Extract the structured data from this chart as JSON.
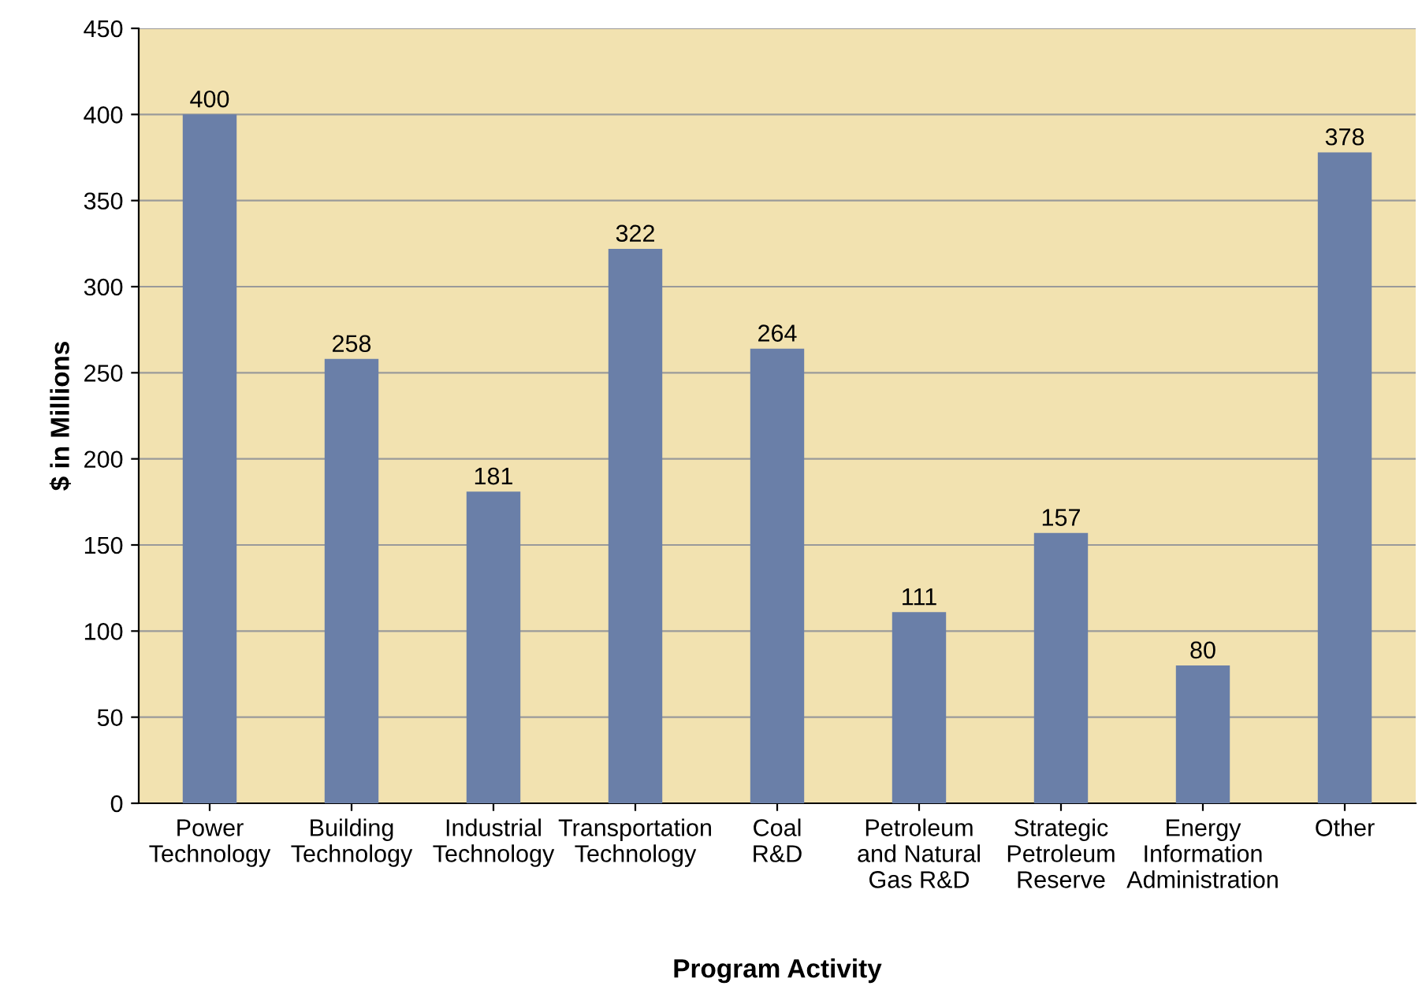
{
  "chart_data": {
    "type": "bar",
    "xlabel": "Program Activity",
    "ylabel": "$ in Millions",
    "categories": [
      "Power\nTechnology",
      "Building\nTechnology",
      "Industrial\nTechnology",
      "Transportation\nTechnology",
      "Coal\nR&D",
      "Petroleum\nand Natural\nGas R&D",
      "Strategic\nPetroleum\nReserve",
      "Energy\nInformation\nAdministration",
      "Other"
    ],
    "values": [
      400,
      258,
      181,
      322,
      264,
      111,
      157,
      80,
      378
    ],
    "color": "#6a7fa8",
    "data_labels": true,
    "grid": "y",
    "ylim": [
      0,
      450
    ],
    "yticks": [
      0,
      50,
      100,
      150,
      200,
      250,
      300,
      350,
      400,
      450
    ]
  }
}
